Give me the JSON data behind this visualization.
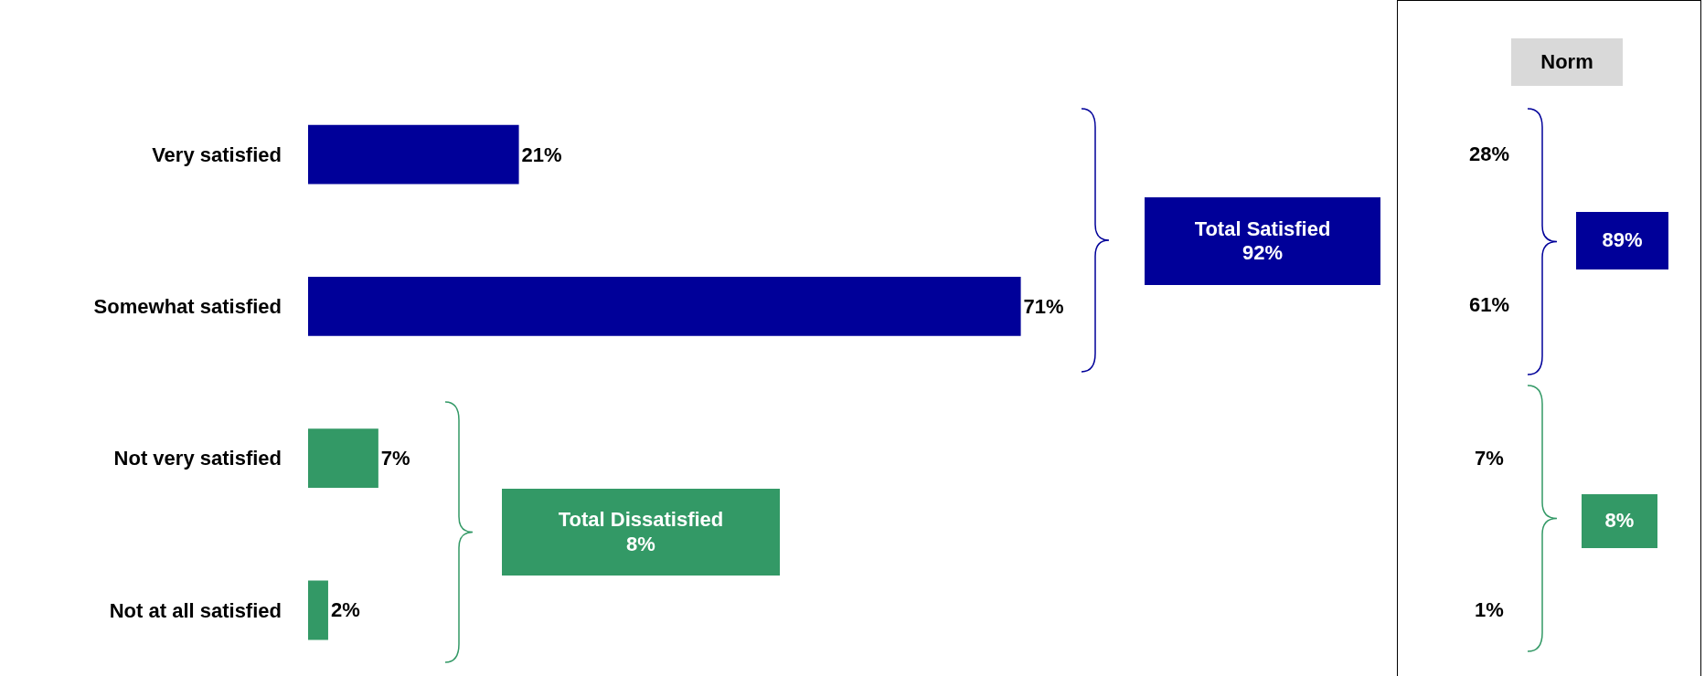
{
  "chart_data": {
    "type": "bar",
    "orientation": "horizontal",
    "categories": [
      "Very satisfied",
      "Somewhat satisfied",
      "Not very satisfied",
      "Not at all satisfied"
    ],
    "values": [
      21,
      71,
      7,
      2
    ],
    "colors": [
      "#000099",
      "#000099",
      "#339966",
      "#339966"
    ],
    "value_labels": [
      "21%",
      "71%",
      "7%",
      "2%"
    ],
    "legend": false,
    "annotations": [
      "Total Satisfied\n92%",
      "Total Dissatisfied\n8%",
      "Norm",
      "28%",
      "61%",
      "7%",
      "1%",
      "89%",
      "8%"
    ]
  }
}
